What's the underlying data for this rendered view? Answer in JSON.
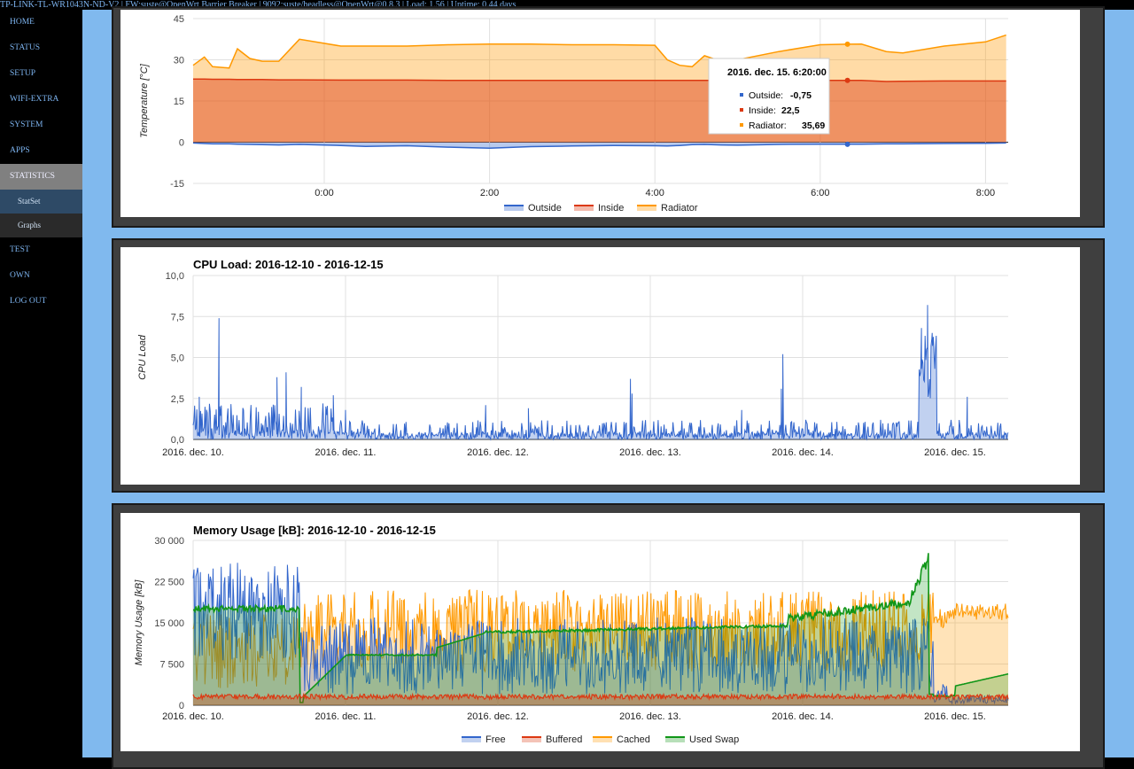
{
  "header": {
    "text": "TP-LINK-TL-WR1043N-ND-V2 | FW:suste@OpenWrt Barrier Breaker | 9092:suste/headless@OpenWrt@0.8.3 | Load: 1.56 | Uptime: 0.44 days"
  },
  "sidebar": {
    "items": [
      {
        "label": "HOME"
      },
      {
        "label": "STATUS"
      },
      {
        "label": "SETUP"
      },
      {
        "label": "WIFI-EXTRA"
      },
      {
        "label": "SYSTEM"
      },
      {
        "label": "APPS"
      },
      {
        "label": "STATISTICS"
      },
      {
        "label": "StatSet"
      },
      {
        "label": "Graphs"
      },
      {
        "label": "TEST"
      },
      {
        "label": "OWN"
      },
      {
        "label": "LOG OUT"
      }
    ]
  },
  "colors": {
    "blue": "#3366cc",
    "red": "#dc3912",
    "orange": "#ff9900",
    "green": "#109618"
  },
  "chart_data": [
    {
      "type": "area",
      "title": "",
      "xlabel": "",
      "ylabel": "Temperature [°C]",
      "ylim": [
        -15,
        45
      ],
      "yticks": [
        "45",
        "30",
        "15",
        "0",
        "-15"
      ],
      "xticks": [
        "0:00",
        "2:00",
        "4:00",
        "6:00",
        "8:00"
      ],
      "grid": true,
      "legend": "bottom",
      "x_hours": [
        -1.6,
        -1.45,
        -1.35,
        -1.15,
        -1.05,
        -0.9,
        -0.75,
        -0.55,
        -0.3,
        0.2,
        0.5,
        1.0,
        1.5,
        2.0,
        2.5,
        3.0,
        3.5,
        4.0,
        4.15,
        4.3,
        4.45,
        4.6,
        4.8,
        5.0,
        5.5,
        6.0,
        6.33,
        6.5,
        6.8,
        7.0,
        7.5,
        8.0,
        8.25
      ],
      "series": [
        {
          "name": "Outside",
          "color": "#3366cc",
          "values": [
            -0.3,
            -0.5,
            -0.6,
            -0.6,
            -0.7,
            -0.8,
            -0.9,
            -1.0,
            -0.8,
            -1.2,
            -1.5,
            -1.3,
            -1.8,
            -2.2,
            -1.6,
            -1.4,
            -1.2,
            -1.3,
            -1.4,
            -1.2,
            -0.9,
            -0.8,
            -1.0,
            -1.1,
            -0.8,
            -0.7,
            -0.75,
            -0.7,
            -0.6,
            -0.6,
            -0.5,
            -0.4,
            -0.3
          ]
        },
        {
          "name": "Inside",
          "color": "#dc3912",
          "values": [
            23.0,
            23.0,
            22.9,
            22.9,
            22.8,
            22.8,
            22.8,
            22.7,
            22.7,
            22.6,
            22.6,
            22.6,
            22.5,
            22.5,
            22.5,
            22.5,
            22.5,
            22.5,
            22.5,
            22.5,
            22.5,
            22.5,
            22.5,
            22.5,
            22.5,
            22.5,
            22.5,
            22.5,
            22.1,
            22.2,
            22.3,
            22.3,
            22.3
          ]
        },
        {
          "name": "Radiator",
          "color": "#ff9900",
          "values": [
            28.0,
            31.0,
            27.5,
            27.0,
            34.0,
            30.5,
            29.5,
            29.5,
            37.5,
            35.0,
            35.0,
            35.0,
            35.5,
            35.7,
            35.7,
            35.5,
            35.5,
            35.3,
            30.0,
            28.0,
            27.5,
            31.5,
            29.5,
            30.0,
            33.0,
            35.5,
            35.69,
            35.7,
            33.0,
            32.5,
            35.0,
            36.5,
            39.0
          ]
        }
      ],
      "tooltip": {
        "title": "2016. dec. 15. 6:20:00",
        "rows": [
          {
            "label": "Outside:",
            "value": "-0,75"
          },
          {
            "label": "Inside:",
            "value": "22,5"
          },
          {
            "label": "Radiator:",
            "value": "35,69"
          }
        ]
      }
    },
    {
      "type": "area",
      "title": "CPU Load: 2016-12-10 - 2016-12-15",
      "xlabel": "",
      "ylabel": "CPU Load",
      "ylim": [
        0,
        10
      ],
      "yticks": [
        "10,0",
        "7,5",
        "5,0",
        "2,5",
        "0,0"
      ],
      "xticks": [
        "2016. dec. 10.",
        "2016. dec. 11.",
        "2016. dec. 12.",
        "2016. dec. 13.",
        "2016. dec. 14.",
        "2016. dec. 15."
      ],
      "grid": true,
      "spikes": [
        {
          "day": 0.17,
          "value": 7.4
        },
        {
          "day": 0.55,
          "value": 3.8
        },
        {
          "day": 0.61,
          "value": 4.1
        },
        {
          "day": 0.71,
          "value": 3.2
        },
        {
          "day": 0.55,
          "value": 3.8
        },
        {
          "day": 0.04,
          "value": 2.6
        },
        {
          "day": 0.92,
          "value": 2.7
        },
        {
          "day": 1.0,
          "value": 1.8
        },
        {
          "day": 1.92,
          "value": 2.1
        },
        {
          "day": 2.2,
          "value": 1.9
        },
        {
          "day": 2.87,
          "value": 3.7
        },
        {
          "day": 2.88,
          "value": 2.8
        },
        {
          "day": 3.6,
          "value": 1.8
        },
        {
          "day": 3.87,
          "value": 5.2
        },
        {
          "day": 3.86,
          "value": 3.1
        },
        {
          "day": 4.78,
          "value": 4.3
        },
        {
          "day": 4.82,
          "value": 8.2
        },
        {
          "day": 4.85,
          "value": 6.5
        },
        {
          "day": 5.08,
          "value": 2.6
        }
      ]
    },
    {
      "type": "area",
      "title": "Memory Usage [kB]: 2016-12-10 - 2016-12-15",
      "xlabel": "",
      "ylabel": "Memory Usage [kB]",
      "ylim": [
        0,
        30000
      ],
      "yticks": [
        "30 000",
        "22 500",
        "15 000",
        "7 500",
        "0"
      ],
      "xticks": [
        "2016. dec. 10.",
        "2016. dec. 11.",
        "2016. dec. 12.",
        "2016. dec. 13.",
        "2016. dec. 14.",
        "2016. dec. 15."
      ],
      "grid": true,
      "legend": "bottom",
      "series": [
        {
          "name": "Free",
          "color": "#3366cc",
          "summary": {
            "early": 20000,
            "mid": 9000,
            "late": 2000
          }
        },
        {
          "name": "Buffered",
          "color": "#dc3912",
          "summary": {
            "level": 1500
          }
        },
        {
          "name": "Cached",
          "color": "#ff9900",
          "summary": {
            "early": 10000,
            "mid": 15000,
            "late": 17000
          }
        },
        {
          "name": "Used Swap",
          "color": "#109618",
          "summary": {
            "early": 17000,
            "day1": 9000,
            "day2": 13000,
            "day3": 14000,
            "peak": 26000,
            "late": 5500
          }
        }
      ]
    }
  ]
}
